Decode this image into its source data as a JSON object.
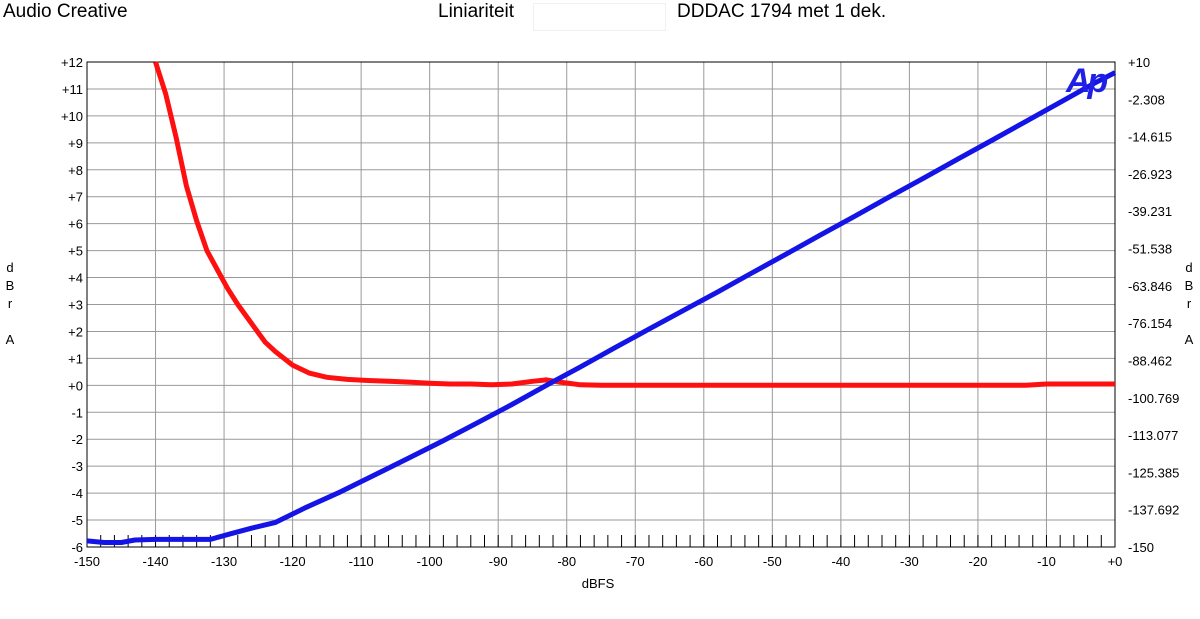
{
  "header": {
    "left": "Audio Creative",
    "middle": "Liniariteit",
    "right": "DDDAC 1794 met 1 dek."
  },
  "logo_text": "Ap",
  "chart_data": {
    "type": "line",
    "xlabel": "dBFS",
    "ylabel_left": [
      "d",
      "B",
      "r",
      "",
      "A"
    ],
    "ylabel_right": [
      "d",
      "B",
      "r",
      "",
      "A"
    ],
    "xlim": [
      -150,
      0
    ],
    "ylim_left": [
      -6,
      12
    ],
    "ylim_right": [
      -150,
      10
    ],
    "x_ticks": [
      -150,
      -140,
      -130,
      -120,
      -110,
      -100,
      -90,
      -80,
      -70,
      -60,
      -50,
      -40,
      -30,
      -20,
      -10,
      0
    ],
    "x_tick_labels": [
      "-150",
      "-140",
      "-130",
      "-120",
      "-110",
      "-100",
      "-90",
      "-80",
      "-70",
      "-60",
      "-50",
      "-40",
      "-30",
      "-20",
      "-10",
      "+0"
    ],
    "left_ticks": [
      12,
      11,
      10,
      9,
      8,
      7,
      6,
      5,
      4,
      3,
      2,
      1,
      0,
      -1,
      -2,
      -3,
      -4,
      -5,
      -6
    ],
    "left_tick_labels": [
      "+12",
      "+11",
      "+10",
      "+9",
      "+8",
      "+7",
      "+6",
      "+5",
      "+4",
      "+3",
      "+2",
      "+1",
      "+0",
      "-1",
      "-2",
      "-3",
      "-4",
      "-5",
      "-6"
    ],
    "right_tick_labels": [
      "+10",
      "-2.308",
      "-14.615",
      "-26.923",
      "-39.231",
      "-51.538",
      "-63.846",
      "-76.154",
      "-88.462",
      "-100.769",
      "-113.077",
      "-125.385",
      "-137.692",
      "-150"
    ],
    "grid": true,
    "series": [
      {
        "axis": "left",
        "color": "#ff1010",
        "x": [
          -140,
          -138.5,
          -137,
          -135.5,
          -134,
          -132.5,
          -131,
          -129.5,
          -128,
          -126,
          -124,
          -122.5,
          -120,
          -117.5,
          -115,
          -112,
          -109,
          -106,
          -103,
          -100,
          -97,
          -94,
          -91,
          -88,
          -85,
          -83,
          -81,
          -78,
          -75,
          -70,
          -60,
          -50,
          -40,
          -30,
          -20,
          -13,
          -10,
          -5,
          0
        ],
        "y": [
          12,
          10.8,
          9.2,
          7.4,
          6.1,
          5.0,
          4.3,
          3.6,
          3.0,
          2.3,
          1.6,
          1.25,
          0.75,
          0.45,
          0.3,
          0.22,
          0.18,
          0.15,
          0.12,
          0.08,
          0.05,
          0.05,
          0.02,
          0.05,
          0.15,
          0.2,
          0.12,
          0.02,
          0,
          0,
          0,
          0,
          0,
          0,
          0,
          0,
          0.05,
          0.05,
          0.05
        ]
      },
      {
        "axis": "right",
        "color": "#1414e6",
        "x": [
          -150,
          -147.5,
          -145,
          -143,
          -140,
          -136,
          -132,
          -129,
          -126,
          -122.5,
          -118,
          -113,
          -108,
          -103,
          -98,
          -93,
          -88,
          -83,
          -78,
          -73,
          -68,
          -63,
          -58,
          -53,
          -48,
          -43,
          -38,
          -33,
          -28,
          -23,
          -18,
          -13,
          -8,
          -3,
          0
        ],
        "y": [
          -148,
          -148.5,
          -148.5,
          -147.7,
          -147.5,
          -147.5,
          -147.5,
          -145.6,
          -143.8,
          -141.9,
          -136.9,
          -131.8,
          -126.2,
          -120.6,
          -114.9,
          -109.0,
          -103.0,
          -96.7,
          -90.6,
          -84.3,
          -78.1,
          -72.0,
          -65.9,
          -59.6,
          -53.4,
          -47.1,
          -40.9,
          -34.6,
          -28.4,
          -22.1,
          -15.9,
          -9.6,
          -3.3,
          3.0,
          6.5
        ]
      }
    ]
  }
}
